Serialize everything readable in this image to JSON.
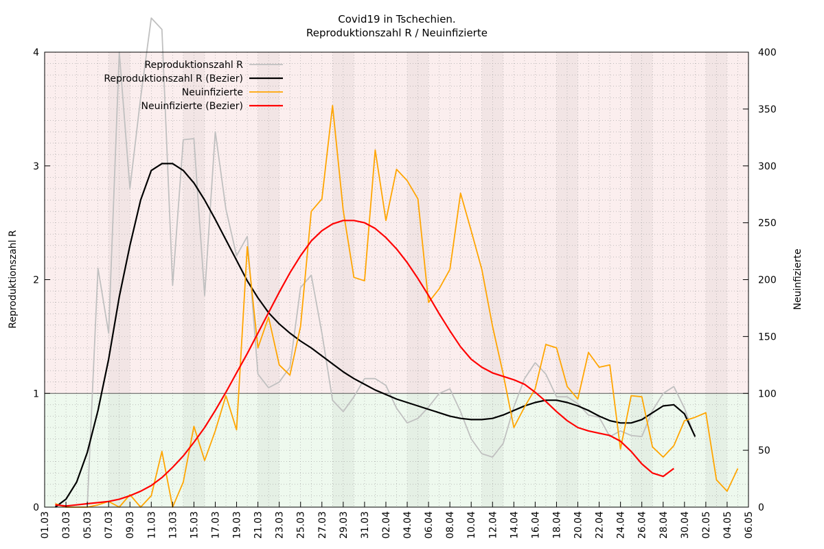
{
  "chart_data": {
    "type": "line",
    "title": "Covid19 in Tschechien.",
    "subtitle": "Reproduktionszahl R / Neuinfizierte",
    "ylabel_left": "Reproduktionszahl R",
    "ylabel_right": "Neuinfizierte",
    "ylim_left": [
      0,
      4
    ],
    "ylim_right": [
      0,
      400
    ],
    "yticks_left": [
      "0",
      "1",
      "2",
      "3",
      "4"
    ],
    "yticks_right": [
      "0",
      "50",
      "100",
      "150",
      "200",
      "250",
      "300",
      "350",
      "400"
    ],
    "xticks": [
      "01.03",
      "03.03",
      "05.03",
      "07.03",
      "09.03",
      "11.03",
      "13.03",
      "15.03",
      "17.03",
      "19.03",
      "21.03",
      "23.03",
      "25.03",
      "27.03",
      "29.03",
      "31.03",
      "02.04",
      "04.04",
      "06.04",
      "08.04",
      "10.04",
      "12.04",
      "14.04",
      "16.04",
      "18.04",
      "20.04",
      "22.04",
      "24.04",
      "26.04",
      "28.04",
      "30.04",
      "02.05",
      "04.05",
      "06.05"
    ],
    "x_unit": "day index from 01.03 (0 = 01.03, 66 = 06.05)",
    "threshold_line": 1,
    "grid": true,
    "legend_position": "top-left",
    "colors": {
      "zone_above": "#fbeeee",
      "zone_below": "#eef9ee",
      "r_raw": "#c0c0c0",
      "r_bezier": "#000000",
      "new_raw": "#ffa500",
      "new_bezier": "#ff0000"
    },
    "series": [
      {
        "name": "Reproduktionszahl R",
        "axis": "left",
        "color": "#c0c0c0",
        "points": [
          [
            4,
            0
          ],
          [
            5,
            2.1
          ],
          [
            6,
            1.53
          ],
          [
            7,
            4.0
          ],
          [
            8,
            2.8
          ],
          [
            9,
            3.6
          ],
          [
            10,
            4.3
          ],
          [
            11,
            4.2
          ],
          [
            12,
            1.95
          ],
          [
            13,
            3.23
          ],
          [
            14,
            3.24
          ],
          [
            15,
            1.86
          ],
          [
            16,
            3.3
          ],
          [
            17,
            2.62
          ],
          [
            18,
            2.21
          ],
          [
            19,
            2.38
          ],
          [
            20,
            1.17
          ],
          [
            21,
            1.05
          ],
          [
            22,
            1.1
          ],
          [
            23,
            1.23
          ],
          [
            24,
            1.93
          ],
          [
            25,
            2.04
          ],
          [
            26,
            1.53
          ],
          [
            27,
            0.94
          ],
          [
            28,
            0.84
          ],
          [
            29,
            0.97
          ],
          [
            30,
            1.13
          ],
          [
            31,
            1.13
          ],
          [
            32,
            1.07
          ],
          [
            33,
            0.87
          ],
          [
            34,
            0.74
          ],
          [
            35,
            0.78
          ],
          [
            36,
            0.88
          ],
          [
            37,
            1.0
          ],
          [
            38,
            1.04
          ],
          [
            39,
            0.84
          ],
          [
            40,
            0.6
          ],
          [
            41,
            0.47
          ],
          [
            42,
            0.44
          ],
          [
            43,
            0.56
          ],
          [
            44,
            0.88
          ],
          [
            45,
            1.13
          ],
          [
            46,
            1.27
          ],
          [
            47,
            1.17
          ],
          [
            48,
            0.97
          ],
          [
            49,
            0.97
          ],
          [
            50,
            0.91
          ],
          [
            51,
            0.81
          ],
          [
            52,
            0.79
          ],
          [
            53,
            0.62
          ],
          [
            54,
            0.67
          ],
          [
            55,
            0.63
          ],
          [
            56,
            0.62
          ],
          [
            57,
            0.85
          ],
          [
            58,
            1.0
          ],
          [
            59,
            1.06
          ],
          [
            60,
            0.87
          ],
          [
            61,
            0.61
          ]
        ]
      },
      {
        "name": "Reproduktionszahl R (Bezier)",
        "axis": "left",
        "color": "#000000",
        "points": [
          [
            1,
            0
          ],
          [
            2,
            0.07
          ],
          [
            3,
            0.22
          ],
          [
            4,
            0.48
          ],
          [
            5,
            0.85
          ],
          [
            6,
            1.3
          ],
          [
            7,
            1.85
          ],
          [
            8,
            2.3
          ],
          [
            9,
            2.7
          ],
          [
            10,
            2.96
          ],
          [
            11,
            3.02
          ],
          [
            12,
            3.02
          ],
          [
            13,
            2.96
          ],
          [
            14,
            2.85
          ],
          [
            15,
            2.7
          ],
          [
            16,
            2.53
          ],
          [
            17,
            2.35
          ],
          [
            18,
            2.17
          ],
          [
            19,
            1.99
          ],
          [
            20,
            1.84
          ],
          [
            21,
            1.71
          ],
          [
            22,
            1.61
          ],
          [
            23,
            1.53
          ],
          [
            24,
            1.46
          ],
          [
            25,
            1.4
          ],
          [
            26,
            1.33
          ],
          [
            27,
            1.26
          ],
          [
            28,
            1.19
          ],
          [
            29,
            1.13
          ],
          [
            30,
            1.08
          ],
          [
            31,
            1.03
          ],
          [
            32,
            0.99
          ],
          [
            33,
            0.95
          ],
          [
            34,
            0.92
          ],
          [
            35,
            0.89
          ],
          [
            36,
            0.86
          ],
          [
            37,
            0.83
          ],
          [
            38,
            0.8
          ],
          [
            39,
            0.78
          ],
          [
            40,
            0.77
          ],
          [
            41,
            0.77
          ],
          [
            42,
            0.78
          ],
          [
            43,
            0.81
          ],
          [
            44,
            0.85
          ],
          [
            45,
            0.89
          ],
          [
            46,
            0.92
          ],
          [
            47,
            0.94
          ],
          [
            48,
            0.94
          ],
          [
            49,
            0.92
          ],
          [
            50,
            0.89
          ],
          [
            51,
            0.85
          ],
          [
            52,
            0.8
          ],
          [
            53,
            0.76
          ],
          [
            54,
            0.74
          ],
          [
            55,
            0.74
          ],
          [
            56,
            0.77
          ],
          [
            57,
            0.83
          ],
          [
            58,
            0.89
          ],
          [
            59,
            0.9
          ],
          [
            60,
            0.82
          ],
          [
            61,
            0.62
          ]
        ]
      },
      {
        "name": "Neuinfizierte",
        "axis": "right",
        "color": "#ffa500",
        "points": [
          [
            1,
            3
          ],
          [
            2,
            0
          ],
          [
            3,
            0
          ],
          [
            4,
            0
          ],
          [
            5,
            2
          ],
          [
            6,
            5
          ],
          [
            7,
            0
          ],
          [
            8,
            11
          ],
          [
            9,
            0
          ],
          [
            10,
            10
          ],
          [
            11,
            49
          ],
          [
            12,
            0
          ],
          [
            13,
            22
          ],
          [
            14,
            71
          ],
          [
            15,
            41
          ],
          [
            16,
            67
          ],
          [
            17,
            98
          ],
          [
            18,
            68
          ],
          [
            19,
            229
          ],
          [
            20,
            140
          ],
          [
            21,
            167
          ],
          [
            22,
            125
          ],
          [
            23,
            116
          ],
          [
            24,
            159
          ],
          [
            25,
            260
          ],
          [
            26,
            271
          ],
          [
            27,
            353
          ],
          [
            28,
            261
          ],
          [
            29,
            202
          ],
          [
            30,
            199
          ],
          [
            31,
            314
          ],
          [
            32,
            252
          ],
          [
            33,
            297
          ],
          [
            34,
            287
          ],
          [
            35,
            271
          ],
          [
            36,
            180
          ],
          [
            37,
            192
          ],
          [
            38,
            209
          ],
          [
            39,
            276
          ],
          [
            40,
            243
          ],
          [
            41,
            209
          ],
          [
            42,
            159
          ],
          [
            43,
            117
          ],
          [
            44,
            70
          ],
          [
            45,
            88
          ],
          [
            46,
            104
          ],
          [
            47,
            143
          ],
          [
            48,
            140
          ],
          [
            49,
            106
          ],
          [
            50,
            95
          ],
          [
            51,
            136
          ],
          [
            52,
            123
          ],
          [
            53,
            125
          ],
          [
            54,
            51
          ],
          [
            55,
            98
          ],
          [
            56,
            97
          ],
          [
            57,
            53
          ],
          [
            58,
            44
          ],
          [
            59,
            54
          ],
          [
            60,
            76
          ],
          [
            61,
            79
          ],
          [
            62,
            83
          ],
          [
            63,
            24
          ],
          [
            64,
            14
          ],
          [
            65,
            34
          ]
        ]
      },
      {
        "name": "Neuinfizierte (Bezier)",
        "axis": "right",
        "color": "#ff0000",
        "points": [
          [
            1,
            2
          ],
          [
            2,
            1
          ],
          [
            3,
            2
          ],
          [
            4,
            3
          ],
          [
            5,
            4
          ],
          [
            6,
            5
          ],
          [
            7,
            7
          ],
          [
            8,
            10
          ],
          [
            9,
            14
          ],
          [
            10,
            19
          ],
          [
            11,
            26
          ],
          [
            12,
            35
          ],
          [
            13,
            45
          ],
          [
            14,
            57
          ],
          [
            15,
            70
          ],
          [
            16,
            85
          ],
          [
            17,
            101
          ],
          [
            18,
            118
          ],
          [
            19,
            135
          ],
          [
            20,
            153
          ],
          [
            21,
            171
          ],
          [
            22,
            189
          ],
          [
            23,
            206
          ],
          [
            24,
            221
          ],
          [
            25,
            234
          ],
          [
            26,
            243
          ],
          [
            27,
            249
          ],
          [
            28,
            252
          ],
          [
            29,
            252
          ],
          [
            30,
            250
          ],
          [
            31,
            245
          ],
          [
            32,
            237
          ],
          [
            33,
            227
          ],
          [
            34,
            215
          ],
          [
            35,
            201
          ],
          [
            36,
            186
          ],
          [
            37,
            170
          ],
          [
            38,
            155
          ],
          [
            39,
            141
          ],
          [
            40,
            130
          ],
          [
            41,
            123
          ],
          [
            42,
            118
          ],
          [
            43,
            115
          ],
          [
            44,
            112
          ],
          [
            45,
            108
          ],
          [
            46,
            101
          ],
          [
            47,
            93
          ],
          [
            48,
            84
          ],
          [
            49,
            76
          ],
          [
            50,
            70
          ],
          [
            51,
            67
          ],
          [
            52,
            65
          ],
          [
            53,
            63
          ],
          [
            54,
            58
          ],
          [
            55,
            49
          ],
          [
            56,
            38
          ],
          [
            57,
            30
          ],
          [
            58,
            27
          ],
          [
            59,
            34
          ]
        ]
      }
    ]
  }
}
